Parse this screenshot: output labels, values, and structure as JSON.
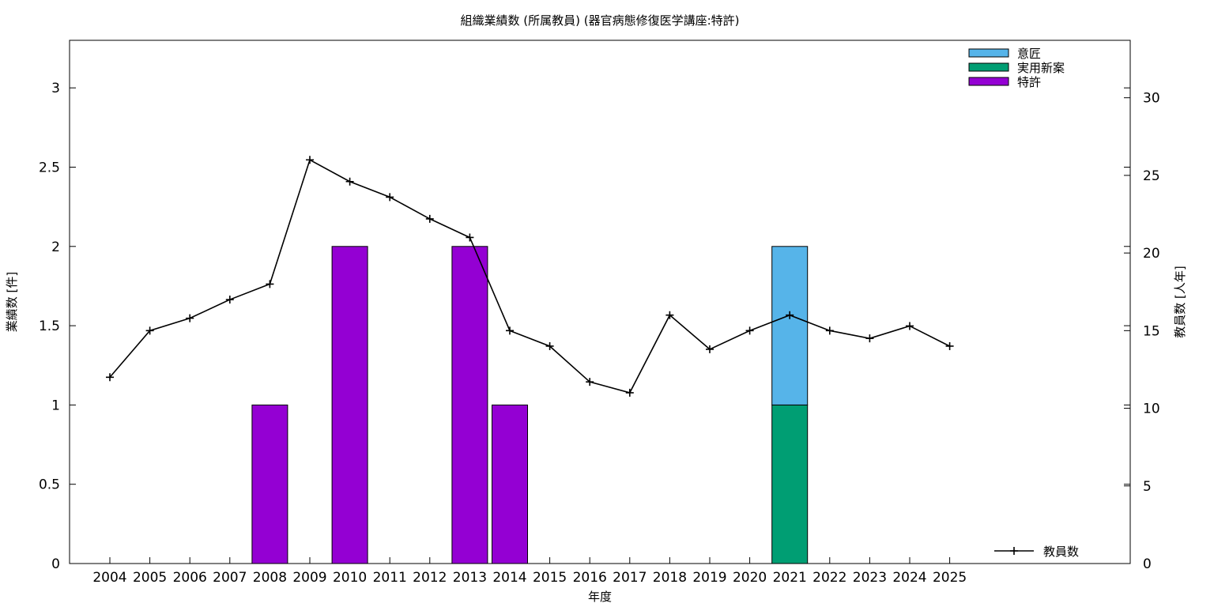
{
  "chart_data": {
    "type": "bar",
    "title": "組織業績数 (所属教員) (器官病態修復医学講座:特許)",
    "xlabel": "年度",
    "ylabel": "業績数 [件]",
    "y2label": "教員数 [人年]",
    "ylim": [
      0,
      3.3
    ],
    "y2lim": [
      0,
      33.7
    ],
    "yticks": [
      "0",
      "0.5",
      "1",
      "1.5",
      "2",
      "2.5",
      "3"
    ],
    "y2ticks": [
      "0",
      "5",
      "10",
      "15",
      "20",
      "25",
      "30"
    ],
    "categories": [
      "2004",
      "2005",
      "2006",
      "2007",
      "2008",
      "2009",
      "2010",
      "2011",
      "2012",
      "2013",
      "2014",
      "2015",
      "2016",
      "2017",
      "2018",
      "2019",
      "2020",
      "2021",
      "2022",
      "2023",
      "2024",
      "2025"
    ],
    "bar_series": [
      {
        "name": "特許",
        "color": "#9400d3",
        "values": [
          0,
          0,
          0,
          0,
          1,
          0,
          2,
          0,
          0,
          2,
          1,
          0,
          0,
          0,
          0,
          0,
          0,
          0,
          0,
          0,
          0,
          0
        ]
      },
      {
        "name": "実用新案",
        "color": "#009e73",
        "values": [
          0,
          0,
          0,
          0,
          0,
          0,
          0,
          0,
          0,
          0,
          0,
          0,
          0,
          0,
          0,
          0,
          0,
          1,
          0,
          0,
          0,
          0
        ]
      },
      {
        "name": "意匠",
        "color": "#56b4e9",
        "values": [
          0,
          0,
          0,
          0,
          0,
          0,
          0,
          0,
          0,
          0,
          0,
          0,
          0,
          0,
          0,
          0,
          0,
          1,
          0,
          0,
          0,
          0
        ]
      }
    ],
    "bar_legend_order": [
      "意匠",
      "実用新案",
      "特許"
    ],
    "bar_legend_position": "top-right",
    "line_series": {
      "name": "教員数",
      "color": "#000000",
      "axis": "right",
      "values": [
        12.0,
        15.0,
        15.8,
        17.0,
        18.0,
        26.0,
        24.6,
        23.6,
        22.2,
        21.0,
        15.0,
        14.0,
        11.7,
        11.0,
        16.0,
        13.8,
        15.0,
        16.0,
        15.0,
        14.5,
        15.3,
        14.0
      ]
    },
    "line_legend_position": "bottom-right",
    "grid": false
  }
}
